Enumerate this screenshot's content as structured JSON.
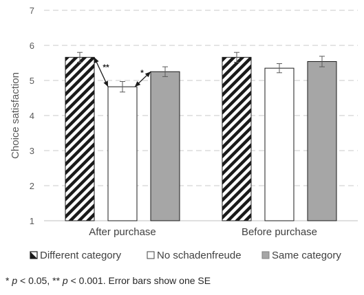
{
  "chart_data": {
    "type": "bar",
    "categories": [
      "After purchase",
      "Before purchase"
    ],
    "series": [
      {
        "name": "Different category",
        "values": [
          5.66,
          5.66
        ],
        "se": [
          0.14,
          0.14
        ],
        "color": "#ffffff",
        "pattern": "diagonal-stripes",
        "legend_icon": "half-filled-square-icon"
      },
      {
        "name": "No schadenfreude",
        "values": [
          4.82,
          5.35
        ],
        "se": [
          0.15,
          0.13
        ],
        "color": "#ffffff",
        "pattern": "none",
        "legend_icon": "empty-square-icon"
      },
      {
        "name": "Same category",
        "values": [
          5.25,
          5.54
        ],
        "se": [
          0.14,
          0.15
        ],
        "color": "#a6a6a6",
        "pattern": "none",
        "legend_icon": "filled-square-icon"
      }
    ],
    "ylabel": "Choice satisfaction",
    "ylim": [
      1,
      7
    ],
    "yticks": [
      "1",
      "2",
      "3",
      "4",
      "5",
      "6",
      "7"
    ],
    "grid": true,
    "legend_position": "bottom",
    "annotations": [
      {
        "label": "**",
        "between": [
          "Different category",
          "No schadenfreude"
        ],
        "category": "After purchase"
      },
      {
        "label": "*",
        "between": [
          "No schadenfreude",
          "Same category"
        ],
        "category": "After purchase"
      }
    ]
  },
  "footnote": {
    "star1": "* ",
    "p1": "p",
    "t1": " < 0.05, ** ",
    "p2": "p",
    "t2": " < 0.001. Error bars show one SE"
  }
}
